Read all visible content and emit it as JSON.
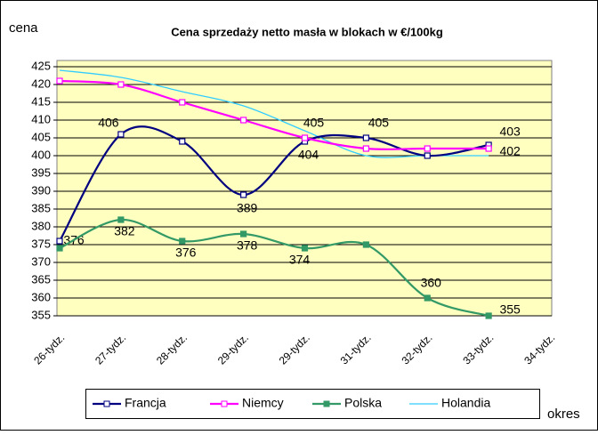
{
  "chart_data": {
    "type": "line",
    "title": "Cena sprzedaży netto masła w blokach w €/100kg",
    "y_label": "cena",
    "x_label": "okres",
    "categories": [
      "26-tydz.",
      "27-tydz.",
      "28-tydz.",
      "29-tydz.",
      "29-tydz.",
      "31-tydz.",
      "32-tydz.",
      "33-tydz.",
      "34-tydz."
    ],
    "series": [
      {
        "name": "Francja",
        "color": "#000080",
        "marker": "open-square",
        "values": [
          376,
          406,
          404,
          389,
          404,
          405,
          400,
          403,
          null
        ],
        "value_labels": [
          "376",
          "406",
          null,
          "389",
          "404",
          "405",
          null,
          "403",
          null
        ]
      },
      {
        "name": "Niemcy",
        "color": "#ff00ff",
        "marker": "open-square",
        "values": [
          421,
          420,
          415,
          410,
          405,
          402,
          402,
          402,
          null
        ],
        "value_labels": [
          null,
          null,
          null,
          null,
          "405",
          null,
          null,
          "402",
          null
        ]
      },
      {
        "name": "Polska",
        "color": "#339966",
        "marker": "filled-square",
        "values": [
          374,
          382,
          376,
          378,
          374,
          375,
          360,
          355,
          null
        ],
        "value_labels": [
          null,
          "382",
          "376",
          "378",
          "374",
          null,
          "360",
          "355",
          null
        ]
      },
      {
        "name": "Holandia",
        "color": "#33ccff",
        "marker": "none",
        "values": [
          424,
          422,
          418,
          414,
          407,
          400,
          400,
          400,
          null
        ]
      }
    ],
    "ylim": [
      355,
      425
    ],
    "yticks": [
      355,
      360,
      365,
      370,
      375,
      380,
      385,
      390,
      395,
      400,
      405,
      410,
      415,
      420,
      425
    ],
    "grid": true,
    "legend": "bottom",
    "smooth": true
  }
}
